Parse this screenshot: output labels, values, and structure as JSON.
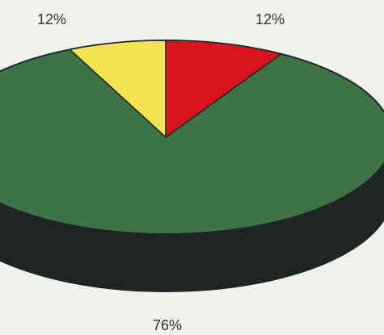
{
  "chart_data": {
    "type": "pie",
    "style": "3d-exploded-tilted",
    "slices": [
      {
        "label": "12%",
        "value": 12,
        "color": "#d9141e"
      },
      {
        "label": "76%",
        "value": 76,
        "color": "#3f7347"
      },
      {
        "label": "12%",
        "value": 12,
        "color": "#f3e350"
      }
    ],
    "side_color": "#1f2523",
    "grid": false,
    "legend": "none"
  }
}
